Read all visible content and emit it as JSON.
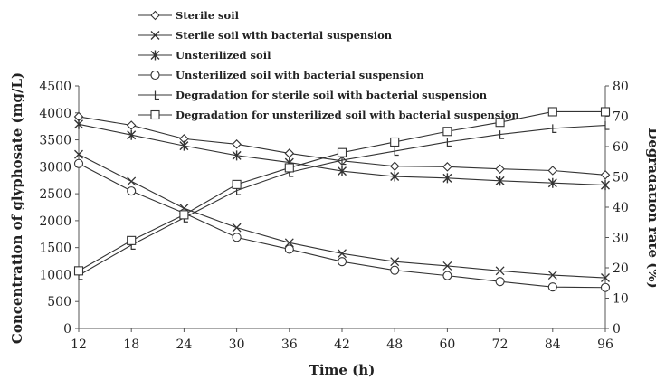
{
  "chart_data": {
    "type": "line",
    "x_categories": [
      "12",
      "18",
      "24",
      "30",
      "36",
      "42",
      "48",
      "60",
      "72",
      "84",
      "96"
    ],
    "xlabel": "Time (h)",
    "ylabel_left": "Concentration of glyphosate (mg/L)",
    "ylabel_right": "Degradation rate (%)",
    "ylim_left": [
      0,
      4500
    ],
    "yticks_left": [
      0,
      500,
      1000,
      1500,
      2000,
      2500,
      3000,
      3500,
      4000,
      4500
    ],
    "ylim_right": [
      0,
      80
    ],
    "yticks_right": [
      0,
      10,
      20,
      30,
      40,
      50,
      60,
      70,
      80
    ],
    "grid": false,
    "legend_position": "top",
    "line_color": "#333333",
    "series": [
      {
        "name": "Sterile soil",
        "axis": "left",
        "marker": "diamond",
        "values": [
          3930,
          3770,
          3520,
          3420,
          3250,
          3110,
          3010,
          3000,
          2960,
          2930,
          2850
        ]
      },
      {
        "name": "Sterile soil with bacterial suspension",
        "axis": "left",
        "marker": "x",
        "values": [
          3230,
          2730,
          2230,
          1870,
          1590,
          1390,
          1240,
          1160,
          1070,
          990,
          940
        ]
      },
      {
        "name": "Unsterilized soil",
        "axis": "left",
        "marker": "star",
        "values": [
          3790,
          3590,
          3390,
          3210,
          3080,
          2920,
          2820,
          2790,
          2740,
          2700,
          2660
        ]
      },
      {
        "name": "Unsterilized soil with bacterial suspension",
        "axis": "left",
        "marker": "circle",
        "values": [
          3060,
          2550,
          2140,
          1690,
          1470,
          1240,
          1080,
          980,
          870,
          770,
          760
        ]
      },
      {
        "name": "Degradation for sterile soil with bacterial suspension",
        "axis": "right",
        "marker": "half-triangle",
        "values": [
          17.5,
          27.5,
          36.5,
          45.5,
          51.5,
          55.5,
          58.5,
          61.5,
          64,
          66,
          67
        ]
      },
      {
        "name": "Degradation for unsterilized soil with bacterial suspension",
        "axis": "right",
        "marker": "square",
        "values": [
          19,
          29,
          37.5,
          47.5,
          53,
          58,
          61.5,
          65,
          68,
          71.5,
          71.5
        ]
      }
    ]
  }
}
